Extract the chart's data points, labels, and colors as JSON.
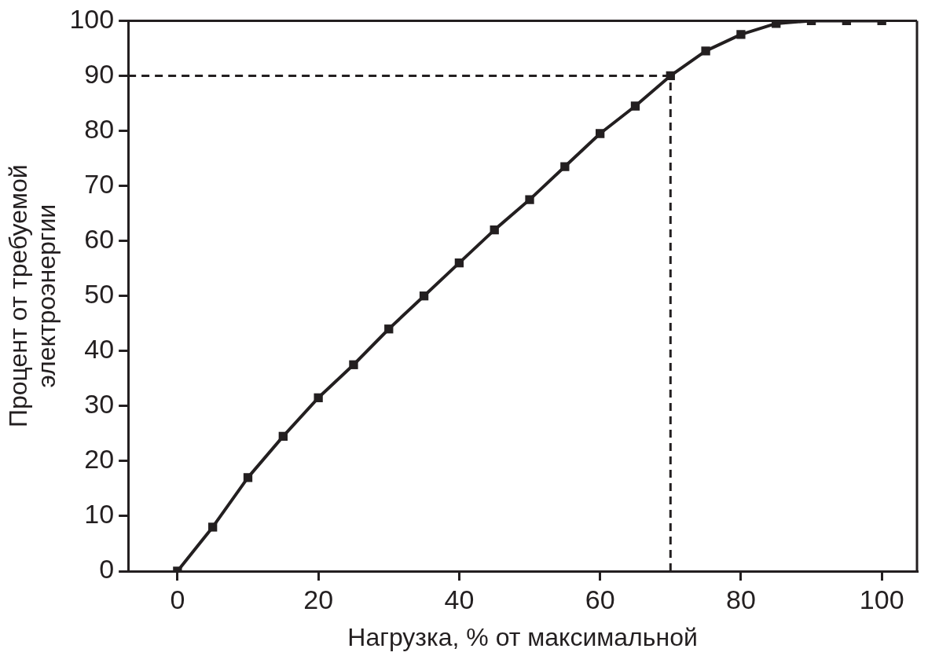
{
  "chart_data": {
    "type": "line",
    "xlabel": "Нагрузка, % от максимальной",
    "ylabel": "Процент от требуемой\nэлектроэнергии",
    "x": [
      0,
      5,
      10,
      15,
      20,
      25,
      30,
      35,
      40,
      45,
      50,
      55,
      60,
      65,
      70,
      75,
      80,
      85,
      90,
      95,
      100
    ],
    "series": [
      {
        "color": "#231f20",
        "values": [
          0,
          8,
          17,
          24.5,
          31.5,
          37.5,
          44,
          50,
          56,
          62,
          67.5,
          73.5,
          79.5,
          84.5,
          90,
          94.5,
          97.5,
          99.5,
          100,
          100,
          100
        ]
      }
    ],
    "xlim": [
      -7,
      105
    ],
    "xticks": [
      0,
      20,
      40,
      60,
      80,
      100
    ],
    "ylim": [
      0,
      100
    ],
    "yticks": [
      0,
      10,
      20,
      30,
      40,
      50,
      60,
      70,
      80,
      90,
      100
    ],
    "grid": false,
    "legend": false,
    "marker": "square",
    "line_style": "solid",
    "ref_lines": [
      {
        "axis": "y",
        "value": 90,
        "line_style": "dashed",
        "color": "#231f20"
      },
      {
        "axis": "x",
        "value": 70,
        "line_style": "dashed",
        "color": "#231f20"
      }
    ]
  }
}
